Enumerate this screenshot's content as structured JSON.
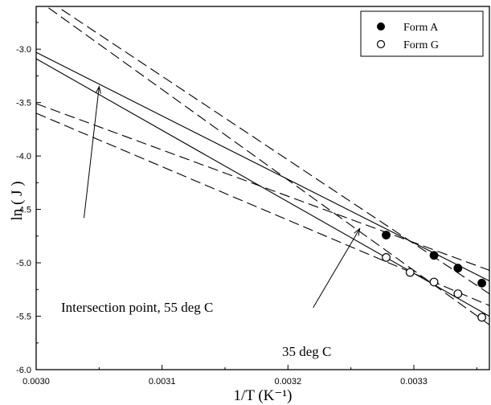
{
  "chart_data": {
    "type": "scatter",
    "xlabel": "1/T (K⁻¹)",
    "ylabel": "ln ( J )",
    "xlim": [
      0.003,
      0.00336
    ],
    "ylim": [
      -6.0,
      -2.6
    ],
    "xticks": [
      "0.0030",
      "0.0031",
      "0.0032",
      "0.0033"
    ],
    "yticks": [
      "-3.0",
      "-3.5",
      "-4.0",
      "-4.5",
      "-5.0",
      "-5.5",
      "-6.0"
    ],
    "series": [
      {
        "name": "Form A",
        "marker": "filled-circle",
        "x": [
          0.003278,
          0.003316,
          0.003335,
          0.003354
        ],
        "y": [
          -4.74,
          -4.93,
          -5.05,
          -5.19
        ]
      },
      {
        "name": "Form G",
        "marker": "open-circle",
        "x": [
          0.003278,
          0.003297,
          0.003316,
          0.003335,
          0.003354
        ],
        "y": [
          -4.95,
          -5.09,
          -5.18,
          -5.29,
          -5.51
        ]
      }
    ],
    "fit_lines": [
      {
        "group": "Form A",
        "style": "solid",
        "x": [
          0.003,
          0.00336
        ],
        "y": [
          -3.03,
          -5.17
        ]
      },
      {
        "group": "Form A",
        "style": "dashed",
        "x": [
          0.003,
          0.00336
        ],
        "y": [
          -2.47,
          -5.29
        ]
      },
      {
        "group": "Form A",
        "style": "dashed",
        "x": [
          0.003,
          0.00336
        ],
        "y": [
          -3.51,
          -5.07
        ]
      },
      {
        "group": "Form G",
        "style": "solid",
        "x": [
          0.003,
          0.00336
        ],
        "y": [
          -3.09,
          -5.5
        ]
      },
      {
        "group": "Form G",
        "style": "dashed",
        "x": [
          0.003,
          0.00336
        ],
        "y": [
          -2.53,
          -5.58
        ]
      },
      {
        "group": "Form G",
        "style": "dashed",
        "x": [
          0.003,
          0.00336
        ],
        "y": [
          -3.6,
          -5.4
        ]
      }
    ],
    "annotations": [
      {
        "text": "Intersection point, 55 deg C",
        "arrow_to": [
          0.00305,
          -3.35
        ]
      },
      {
        "text": "35 deg C",
        "arrow_to": [
          0.003257,
          -4.68
        ]
      }
    ],
    "legend": {
      "placement": "top-right",
      "entries": [
        "Form A",
        "Form G"
      ]
    },
    "grid": false
  }
}
